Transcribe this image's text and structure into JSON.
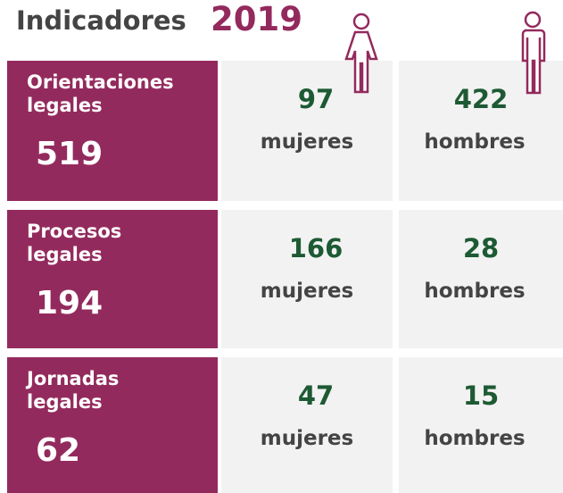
{
  "header": {
    "title": "Indicadores",
    "year": "2019"
  },
  "rows": [
    {
      "label": [
        "Orientaciones",
        "legales"
      ],
      "total": 519,
      "women": 97,
      "women_label": "mujeres",
      "men": 422,
      "men_label": "hombres"
    },
    {
      "label": [
        "Procesos",
        "legales"
      ],
      "total": 194,
      "women": 166,
      "women_label": "mujeres",
      "men": 28,
      "men_label": "hombres"
    },
    {
      "label": [
        "Jornadas",
        "legales"
      ],
      "total": 62,
      "women": 47,
      "women_label": "mujeres",
      "men": 15,
      "men_label": "hombres"
    }
  ]
}
